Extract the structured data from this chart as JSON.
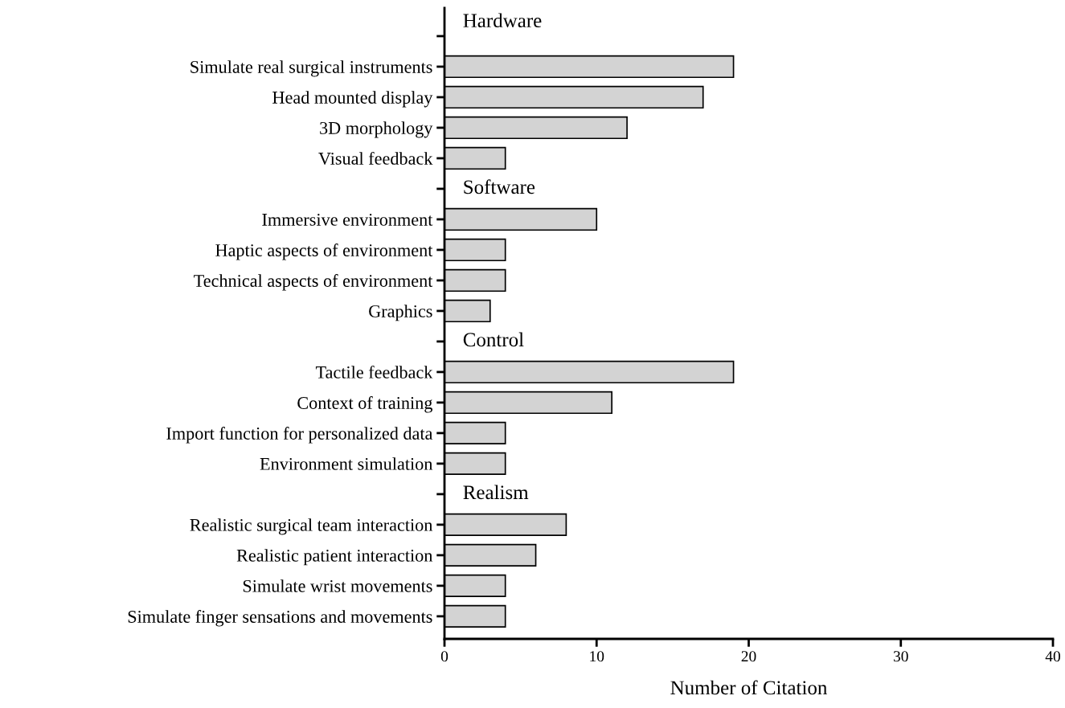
{
  "chart_data": {
    "type": "bar",
    "orientation": "horizontal",
    "xlabel": "Number of Citation",
    "categories": [
      null,
      "Simulate real surgical instruments",
      "Head mounted display",
      "3D morphology",
      "Visual feedback",
      null,
      "Immersive environment",
      "Haptic aspects of environment",
      "Technical aspects of environment",
      "Graphics",
      null,
      "Tactile feedback",
      "Context of training",
      "Import function for personalized data",
      "Environment simulation",
      null,
      "Realistic surgical team interaction",
      "Realistic patient interaction",
      "Simulate wrist movements",
      "Simulate finger sensations and movements"
    ],
    "values": [
      null,
      19,
      17,
      12,
      4,
      null,
      10,
      4,
      4,
      3,
      null,
      19,
      11,
      4,
      4,
      null,
      8,
      6,
      4,
      4
    ],
    "color": "#d3d3d3",
    "xlim": [
      0,
      40
    ],
    "xticks": [
      0,
      10,
      20,
      30,
      40
    ],
    "annotations": [
      "Hardware",
      "Software",
      "Control",
      "Realism"
    ]
  }
}
